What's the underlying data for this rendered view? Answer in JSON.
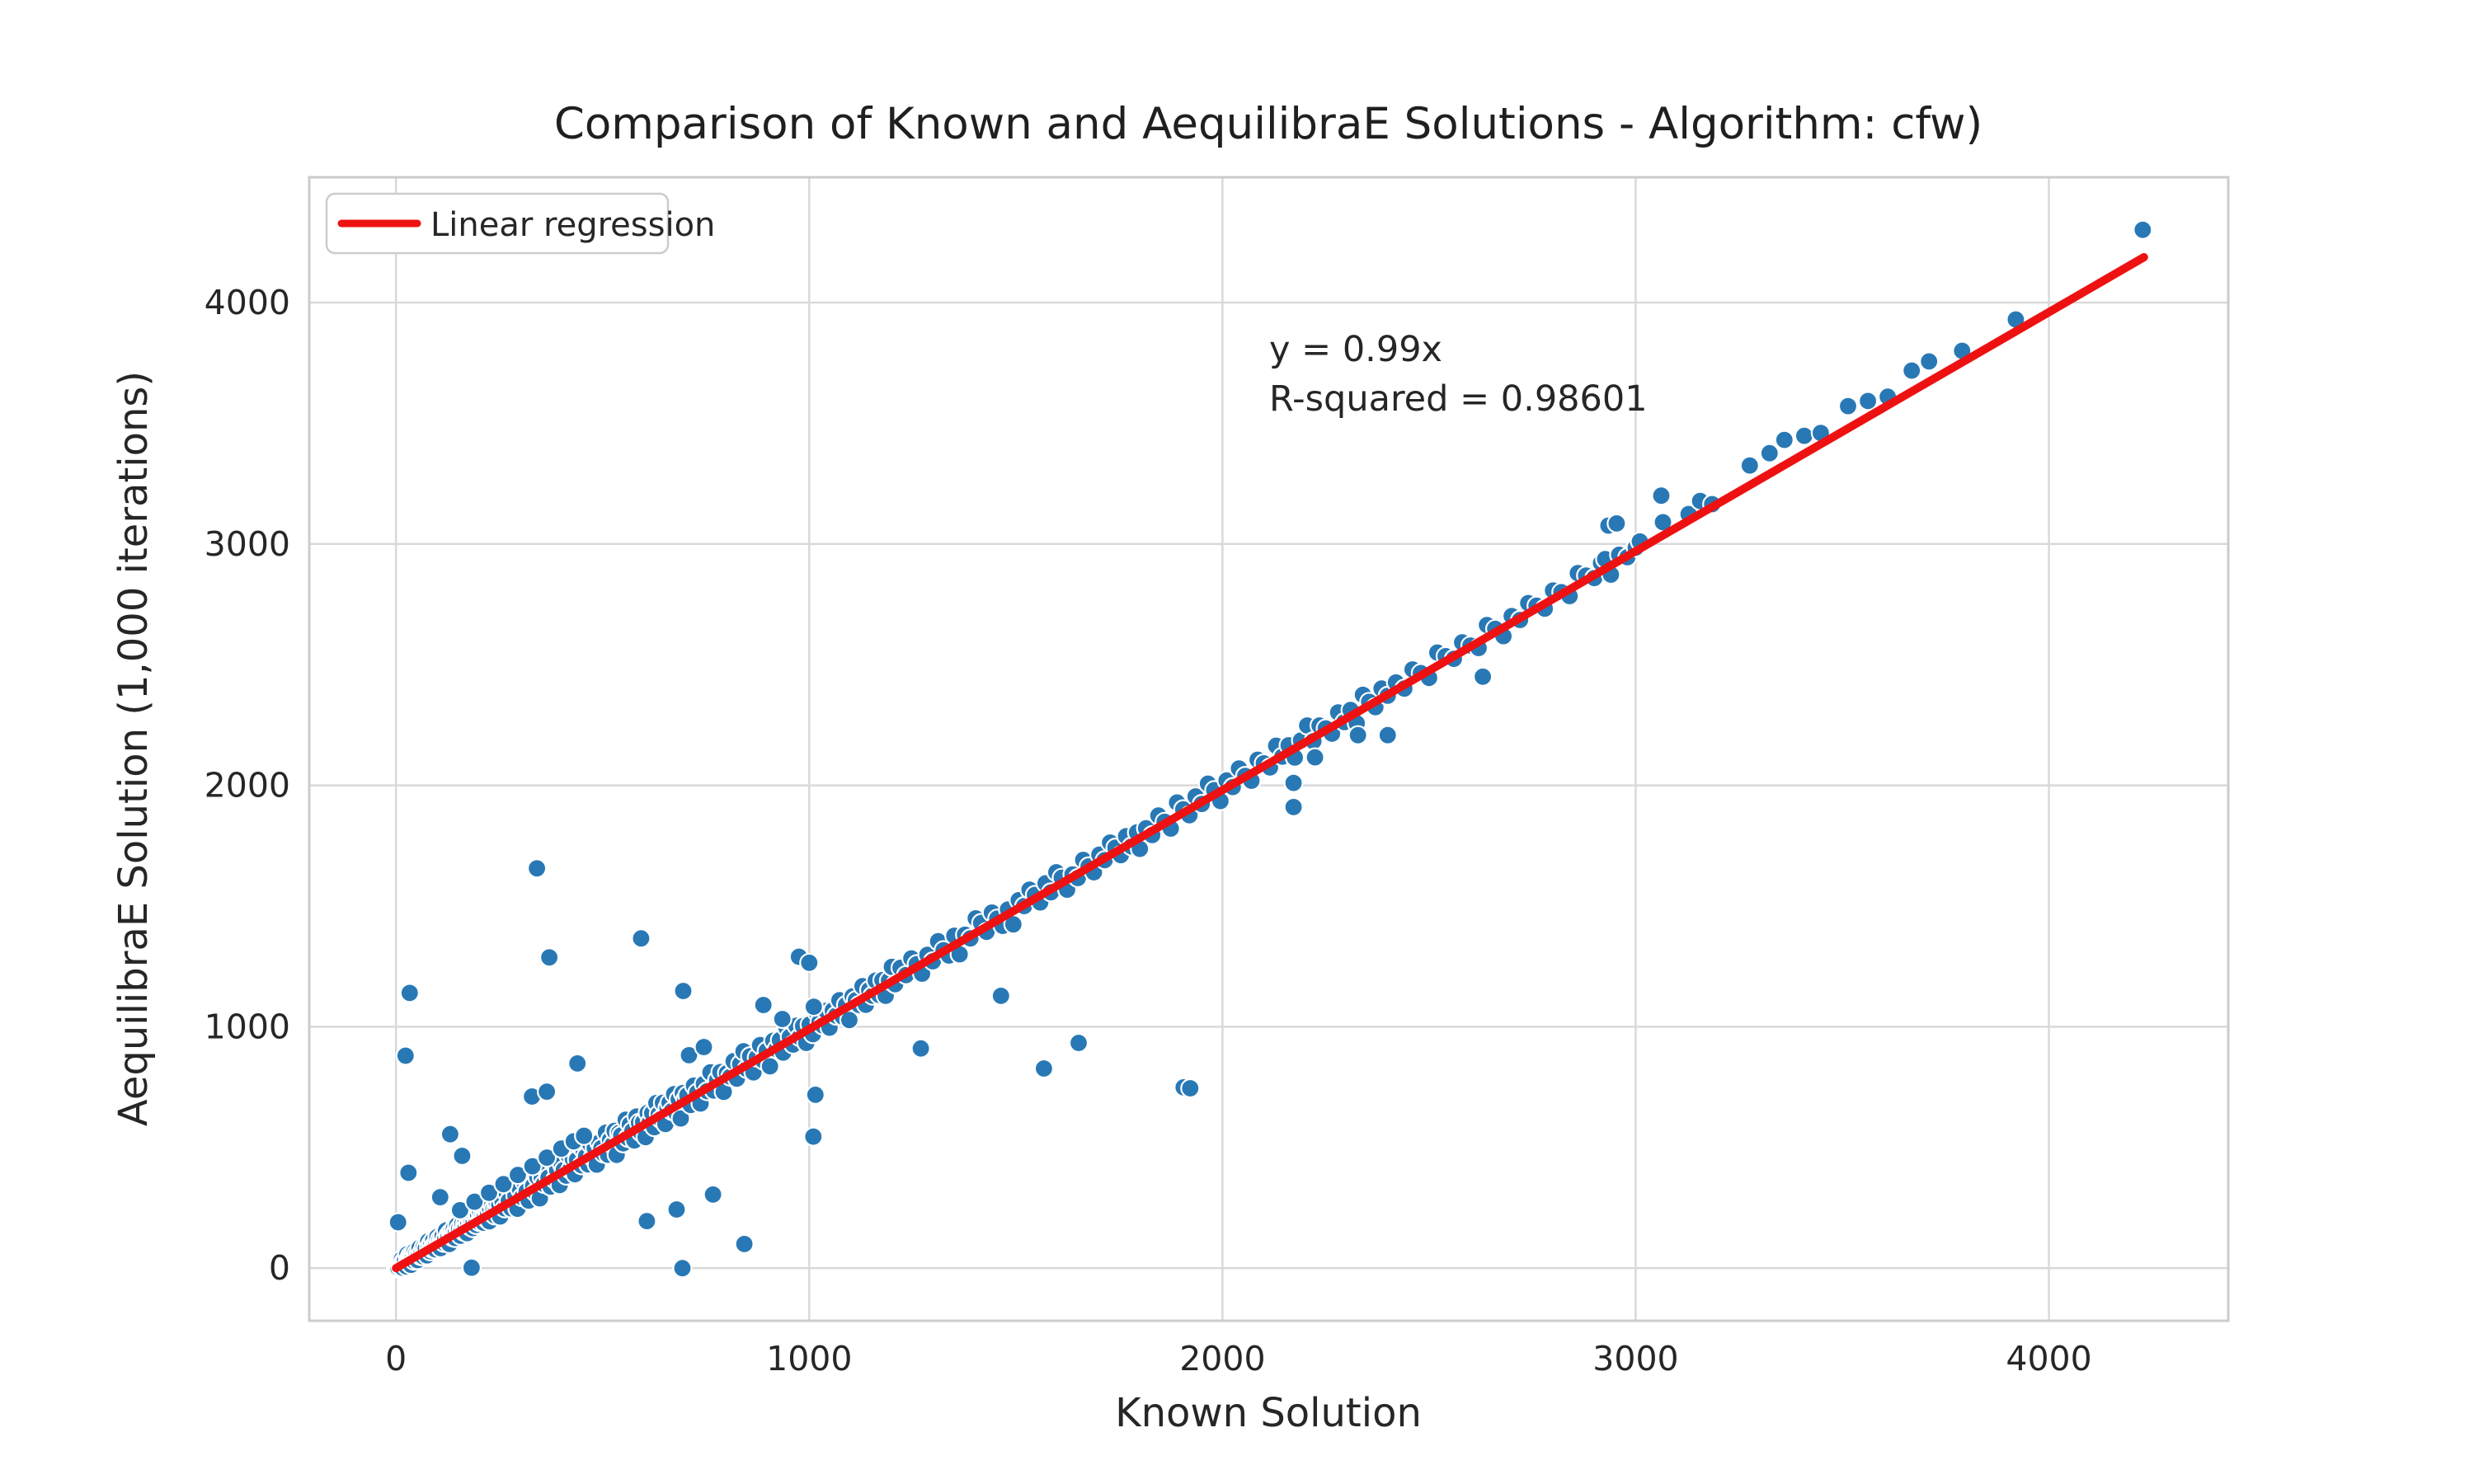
{
  "figure": {
    "title": "Comparison of Known and AequilibraE Solutions - Algorithm: cfw)",
    "xlabel": "Known Solution",
    "ylabel": "AequilibraE Solution (1,000 iterations)",
    "legend_label": "Linear regression",
    "annotation_line1": "y = 0.99x",
    "annotation_line2": "R-squared = 0.98601"
  },
  "colors": {
    "point_fill": "#2878b5",
    "point_edge": "#ffffff",
    "regression_line": "#ee1111",
    "grid": "#d9d9d9",
    "spine": "#cccccc",
    "text": "#262626",
    "background": "#ffffff"
  },
  "chart_data": {
    "type": "scatter",
    "title": "Comparison of Known and AequilibraE Solutions - Algorithm: cfw)",
    "xlabel": "Known Solution",
    "ylabel": "AequilibraE Solution (1,000 iterations)",
    "xlim": [
      -210,
      4434
    ],
    "ylim": [
      -218,
      4519
    ],
    "xticks": [
      0,
      1000,
      2000,
      3000,
      4000
    ],
    "yticks": [
      0,
      1000,
      2000,
      3000,
      4000
    ],
    "grid": "on",
    "legend_position": "upper left",
    "regression": {
      "label": "Linear regression",
      "slope": 0.99,
      "intercept": 0,
      "x_start": 0,
      "x_end": 4230,
      "equation": "y = 0.99x",
      "r_squared": 0.98601
    },
    "points": [
      [
        0,
        2
      ],
      [
        2,
        -1
      ],
      [
        4,
        12
      ],
      [
        6,
        0
      ],
      [
        8,
        23
      ],
      [
        10,
        13
      ],
      [
        12,
        2
      ],
      [
        14,
        36
      ],
      [
        16,
        2
      ],
      [
        18,
        25
      ],
      [
        20,
        18
      ],
      [
        22,
        34
      ],
      [
        25,
        7
      ],
      [
        27,
        57
      ],
      [
        29,
        33
      ],
      [
        31,
        23
      ],
      [
        34,
        51
      ],
      [
        36,
        14
      ],
      [
        38,
        47
      ],
      [
        40,
        42
      ],
      [
        43,
        31
      ],
      [
        45,
        70
      ],
      [
        47,
        42
      ],
      [
        50,
        64
      ],
      [
        52,
        33
      ],
      [
        55,
        62
      ],
      [
        57,
        84
      ],
      [
        60,
        50
      ],
      [
        62,
        64
      ],
      [
        65,
        49
      ],
      [
        67,
        86
      ],
      [
        70,
        66
      ],
      [
        72,
        82
      ],
      [
        75,
        53
      ],
      [
        78,
        111
      ],
      [
        80,
        85
      ],
      [
        83,
        70
      ],
      [
        85,
        102
      ],
      [
        88,
        80
      ],
      [
        90,
        114
      ],
      [
        93,
        94
      ],
      [
        95,
        78
      ],
      [
        98,
        106
      ],
      [
        100,
        129
      ],
      [
        103,
        97
      ],
      [
        106,
        120
      ],
      [
        108,
        83
      ],
      [
        111,
        117
      ],
      [
        113,
        133
      ],
      [
        116,
        105
      ],
      [
        119,
        121
      ],
      [
        121,
        156
      ],
      [
        124,
        109
      ],
      [
        127,
        136
      ],
      [
        129,
        100
      ],
      [
        132,
        147
      ],
      [
        135,
        139
      ],
      [
        137,
        128
      ],
      [
        140,
        163
      ],
      [
        143,
        125
      ],
      [
        145,
        153
      ],
      [
        148,
        177
      ],
      [
        151,
        145
      ],
      [
        153,
        164
      ],
      [
        156,
        134
      ],
      [
        159,
        164
      ],
      [
        161,
        186
      ],
      [
        164,
        151
      ],
      [
        167,
        183
      ],
      [
        169,
        169
      ],
      [
        172,
        145
      ],
      [
        175,
        185
      ],
      [
        177,
        213
      ],
      [
        180,
        172
      ],
      [
        183,
        196
      ],
      [
        186,
        166
      ],
      [
        188,
        194
      ],
      [
        191,
        218
      ],
      [
        194,
        179
      ],
      [
        196,
        198
      ],
      [
        199,
        218
      ],
      [
        202,
        191
      ],
      [
        204,
        235
      ],
      [
        207,
        203
      ],
      [
        210,
        222
      ],
      [
        212,
        188
      ],
      [
        215,
        223
      ],
      [
        218,
        242
      ],
      [
        220,
        203
      ],
      [
        223,
        227
      ],
      [
        226,
        194
      ],
      [
        228,
        244
      ],
      [
        231,
        269
      ],
      [
        234,
        225
      ],
      [
        236,
        246
      ],
      [
        239,
        218
      ],
      [
        242,
        248
      ],
      [
        244,
        270
      ],
      [
        247,
        233
      ],
      [
        250,
        264
      ],
      [
        252,
        214
      ],
      [
        258,
        277
      ],
      [
        263,
        248
      ],
      [
        268,
        310
      ],
      [
        273,
        278
      ],
      [
        279,
        248
      ],
      [
        284,
        341
      ],
      [
        289,
        301
      ],
      [
        294,
        246
      ],
      [
        300,
        327
      ],
      [
        305,
        294
      ],
      [
        310,
        359
      ],
      [
        316,
        318
      ],
      [
        321,
        280
      ],
      [
        326,
        393
      ],
      [
        332,
        341
      ],
      [
        337,
        314
      ],
      [
        342,
        377
      ],
      [
        348,
        289
      ],
      [
        353,
        374
      ],
      [
        358,
        349
      ],
      [
        364,
        408
      ],
      [
        369,
        375
      ],
      [
        374,
        338
      ],
      [
        380,
        438
      ],
      [
        385,
        366
      ],
      [
        390,
        406
      ],
      [
        396,
        344
      ],
      [
        401,
        432
      ],
      [
        406,
        407
      ],
      [
        412,
        383
      ],
      [
        417,
        468
      ],
      [
        422,
        408
      ],
      [
        428,
        452
      ],
      [
        433,
        389
      ],
      [
        438,
        449
      ],
      [
        444,
        508
      ],
      [
        449,
        426
      ],
      [
        454,
        489
      ],
      [
        460,
        463
      ],
      [
        465,
        430
      ],
      [
        470,
        515
      ],
      [
        476,
        459
      ],
      [
        481,
        498
      ],
      [
        486,
        429
      ],
      [
        492,
        520
      ],
      [
        497,
        497
      ],
      [
        502,
        475
      ],
      [
        508,
        561
      ],
      [
        513,
        470
      ],
      [
        518,
        531
      ],
      [
        524,
        511
      ],
      [
        529,
        569
      ],
      [
        534,
        469
      ],
      [
        540,
        560
      ],
      [
        545,
        550
      ],
      [
        550,
        517
      ],
      [
        556,
        615
      ],
      [
        561,
        540
      ],
      [
        566,
        595
      ],
      [
        572,
        568
      ],
      [
        577,
        529
      ],
      [
        582,
        628
      ],
      [
        588,
        602
      ],
      [
        593,
        562
      ],
      [
        598,
        604
      ],
      [
        604,
        543
      ],
      [
        609,
        643
      ],
      [
        614,
        603
      ],
      [
        620,
        642
      ],
      [
        625,
        584
      ],
      [
        630,
        684
      ],
      [
        636,
        638
      ],
      [
        641,
        617
      ],
      [
        646,
        685
      ],
      [
        652,
        597
      ],
      [
        657,
        665
      ],
      [
        662,
        685
      ],
      [
        668,
        651
      ],
      [
        673,
        721
      ],
      [
        678,
        643
      ],
      [
        684,
        699
      ],
      [
        689,
        620
      ],
      [
        694,
        725
      ],
      [
        700,
        698
      ],
      [
        155,
        240
      ],
      [
        190,
        275
      ],
      [
        225,
        312
      ],
      [
        260,
        348
      ],
      [
        295,
        386
      ],
      [
        330,
        422
      ],
      [
        365,
        458
      ],
      [
        400,
        495
      ],
      [
        430,
        525
      ],
      [
        455,
        548
      ],
      [
        705,
        716
      ],
      [
        713,
        676
      ],
      [
        721,
        756
      ],
      [
        729,
        727
      ],
      [
        737,
        682
      ],
      [
        745,
        763
      ],
      [
        753,
        733
      ],
      [
        761,
        811
      ],
      [
        769,
        736
      ],
      [
        777,
        779
      ],
      [
        785,
        812
      ],
      [
        793,
        730
      ],
      [
        801,
        808
      ],
      [
        809,
        793
      ],
      [
        817,
        857
      ],
      [
        825,
        785
      ],
      [
        833,
        845
      ],
      [
        841,
        898
      ],
      [
        849,
        825
      ],
      [
        857,
        878
      ],
      [
        865,
        811
      ],
      [
        873,
        872
      ],
      [
        881,
        924
      ],
      [
        889,
        860
      ],
      [
        897,
        900
      ],
      [
        905,
        836
      ],
      [
        913,
        942
      ],
      [
        921,
        907
      ],
      [
        929,
        945
      ],
      [
        937,
        893
      ],
      [
        945,
        996
      ],
      [
        953,
        958
      ],
      [
        961,
        926
      ],
      [
        969,
        1004
      ],
      [
        977,
        957
      ],
      [
        985,
        1003
      ],
      [
        993,
        933
      ],
      [
        1001,
        1009
      ],
      [
        1009,
        969
      ],
      [
        1017,
        1062
      ],
      [
        1025,
        1020
      ],
      [
        1033,
        1005
      ],
      [
        1041,
        1066
      ],
      [
        1049,
        996
      ],
      [
        1057,
        1068
      ],
      [
        1065,
        1046
      ],
      [
        1073,
        1110
      ],
      [
        1081,
        1042
      ],
      [
        1089,
        1090
      ],
      [
        1097,
        1028
      ],
      [
        1105,
        1126
      ],
      [
        1113,
        1110
      ],
      [
        1121,
        1090
      ],
      [
        1129,
        1168
      ],
      [
        1137,
        1091
      ],
      [
        1145,
        1152
      ],
      [
        1153,
        1129
      ],
      [
        1161,
        1191
      ],
      [
        1169,
        1132
      ],
      [
        1177,
        1193
      ],
      [
        1185,
        1128
      ],
      [
        1193,
        1191
      ],
      [
        1200,
        1248
      ],
      [
        1208,
        1176
      ],
      [
        1221,
        1244
      ],
      [
        1234,
        1214
      ],
      [
        1247,
        1283
      ],
      [
        1260,
        1259
      ],
      [
        1273,
        1220
      ],
      [
        1286,
        1298
      ],
      [
        1299,
        1271
      ],
      [
        1312,
        1354
      ],
      [
        1325,
        1317
      ],
      [
        1338,
        1295
      ],
      [
        1351,
        1377
      ],
      [
        1364,
        1300
      ],
      [
        1377,
        1381
      ],
      [
        1390,
        1366
      ],
      [
        1403,
        1449
      ],
      [
        1416,
        1430
      ],
      [
        1429,
        1393
      ],
      [
        1442,
        1473
      ],
      [
        1455,
        1448
      ],
      [
        1468,
        1418
      ],
      [
        1481,
        1486
      ],
      [
        1494,
        1424
      ],
      [
        1507,
        1524
      ],
      [
        1520,
        1500
      ],
      [
        1533,
        1568
      ],
      [
        1546,
        1546
      ],
      [
        1559,
        1515
      ],
      [
        1572,
        1594
      ],
      [
        1585,
        1557
      ],
      [
        1598,
        1640
      ],
      [
        1611,
        1617
      ],
      [
        1624,
        1568
      ],
      [
        1637,
        1631
      ],
      [
        1650,
        1616
      ],
      [
        1663,
        1691
      ],
      [
        1676,
        1664
      ],
      [
        1689,
        1640
      ],
      [
        1702,
        1713
      ],
      [
        1715,
        1690
      ],
      [
        1728,
        1763
      ],
      [
        1741,
        1742
      ],
      [
        1754,
        1711
      ],
      [
        1767,
        1789
      ],
      [
        1780,
        1747
      ],
      [
        1793,
        1805
      ],
      [
        1800,
        1737
      ],
      [
        1815,
        1822
      ],
      [
        1830,
        1794
      ],
      [
        1845,
        1875
      ],
      [
        1860,
        1849
      ],
      [
        1875,
        1821
      ],
      [
        1890,
        1929
      ],
      [
        1905,
        1901
      ],
      [
        1920,
        1876
      ],
      [
        1935,
        1954
      ],
      [
        1950,
        1923
      ],
      [
        1965,
        2007
      ],
      [
        1980,
        1980
      ],
      [
        1995,
        1935
      ],
      [
        2010,
        2020
      ],
      [
        2025,
        1993
      ],
      [
        2040,
        2070
      ],
      [
        2055,
        2039
      ],
      [
        2070,
        2019
      ],
      [
        2085,
        2106
      ],
      [
        2100,
        2091
      ],
      [
        2115,
        2074
      ],
      [
        2130,
        2164
      ],
      [
        2145,
        2119
      ],
      [
        2160,
        2166
      ],
      [
        2175,
        2115
      ],
      [
        2190,
        2186
      ],
      [
        2205,
        2248
      ],
      [
        2220,
        2183
      ],
      [
        2235,
        2248
      ],
      [
        2250,
        2236
      ],
      [
        2265,
        2214
      ],
      [
        2280,
        2302
      ],
      [
        2295,
        2262
      ],
      [
        2310,
        2312
      ],
      [
        2325,
        2257
      ],
      [
        2340,
        2375
      ],
      [
        2355,
        2346
      ],
      [
        2370,
        2324
      ],
      [
        2385,
        2401
      ],
      [
        2400,
        2371
      ],
      [
        2420,
        2426
      ],
      [
        2440,
        2401
      ],
      [
        2460,
        2480
      ],
      [
        2480,
        2465
      ],
      [
        2500,
        2445
      ],
      [
        2520,
        2550
      ],
      [
        2540,
        2535
      ],
      [
        2560,
        2524
      ],
      [
        2580,
        2592
      ],
      [
        2600,
        2579
      ],
      [
        2620,
        2569
      ],
      [
        2640,
        2664
      ],
      [
        2660,
        2648
      ],
      [
        2680,
        2618
      ],
      [
        2700,
        2701
      ],
      [
        2720,
        2685
      ],
      [
        2740,
        2755
      ],
      [
        2760,
        2744
      ],
      [
        2780,
        2732
      ],
      [
        2800,
        2807
      ],
      [
        2820,
        2800
      ],
      [
        2840,
        2784
      ],
      [
        2860,
        2879
      ],
      [
        2880,
        2869
      ],
      [
        2900,
        2859
      ],
      [
        2916,
        2921
      ],
      [
        2926,
        2937
      ],
      [
        2940,
        2873
      ],
      [
        2960,
        2955
      ],
      [
        2980,
        2945
      ],
      [
        3000,
        2985
      ],
      [
        2934,
        3076
      ],
      [
        3010,
        3010
      ],
      [
        3062,
        3200
      ],
      [
        3066,
        3090
      ],
      [
        3128,
        3124
      ],
      [
        3156,
        3178
      ],
      [
        3185,
        3165
      ],
      [
        3276,
        3325
      ],
      [
        3324,
        3376
      ],
      [
        3360,
        3431
      ],
      [
        3408,
        3448
      ],
      [
        3448,
        3460
      ],
      [
        3514,
        3571
      ],
      [
        3562,
        3592
      ],
      [
        3610,
        3610
      ],
      [
        3668,
        3718
      ],
      [
        3710,
        3756
      ],
      [
        3790,
        3800
      ],
      [
        3920,
        3930
      ],
      [
        4227,
        4301
      ],
      [
        33,
        1140
      ],
      [
        23,
        880
      ],
      [
        341,
        1656
      ],
      [
        371,
        1287
      ],
      [
        593,
        1366
      ],
      [
        695,
        1148
      ],
      [
        131,
        555
      ],
      [
        160,
        465
      ],
      [
        30,
        395
      ],
      [
        107,
        294
      ],
      [
        5,
        190
      ],
      [
        709,
        882
      ],
      [
        745,
        916
      ],
      [
        889,
        1090
      ],
      [
        935,
        1032
      ],
      [
        1011,
        1083
      ],
      [
        975,
        1290
      ],
      [
        1000,
        1265
      ],
      [
        329,
        711
      ],
      [
        365,
        731
      ],
      [
        439,
        848
      ],
      [
        2954,
        3085
      ],
      [
        183,
        2
      ],
      [
        693,
        0
      ],
      [
        843,
        100
      ],
      [
        607,
        195
      ],
      [
        679,
        243
      ],
      [
        767,
        305
      ],
      [
        1010,
        545
      ],
      [
        1015,
        718
      ],
      [
        1270,
        910
      ],
      [
        1464,
        1128
      ],
      [
        1568,
        827
      ],
      [
        1652,
        933
      ],
      [
        1906,
        749
      ],
      [
        1922,
        745
      ],
      [
        2172,
        2010
      ],
      [
        2172,
        1910
      ],
      [
        2224,
        2116
      ],
      [
        2328,
        2208
      ],
      [
        2400,
        2208
      ],
      [
        2630,
        2450
      ]
    ]
  }
}
